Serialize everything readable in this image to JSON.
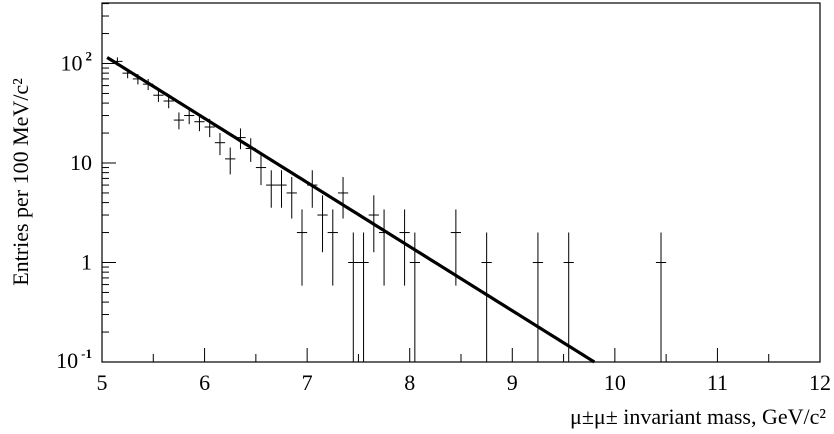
{
  "chart_data": {
    "type": "scatter",
    "title": "",
    "xlabel": "μ±μ± invariant mass, GeV/c²",
    "ylabel": "Entries per 100 MeV/c²",
    "xlim": [
      5,
      12
    ],
    "ylim": [
      0.1,
      400
    ],
    "yscale": "log",
    "grid": false,
    "x_ticks": [
      "5",
      "6",
      "7",
      "8",
      "9",
      "10",
      "11",
      "12"
    ],
    "y_ticks": [
      {
        "base": "10",
        "exp": "2"
      },
      {
        "base": "10",
        "exp": ""
      },
      {
        "base": "1",
        "exp": ""
      },
      {
        "base": "10",
        "exp": "-1"
      }
    ],
    "x_bin_width": 0.1,
    "series": [
      {
        "kind": "data-points-with-error-bars",
        "points": [
          {
            "x": 5.15,
            "y": 105
          },
          {
            "x": 5.25,
            "y": 80
          },
          {
            "x": 5.35,
            "y": 70
          },
          {
            "x": 5.45,
            "y": 62
          },
          {
            "x": 5.55,
            "y": 48
          },
          {
            "x": 5.65,
            "y": 42
          },
          {
            "x": 5.75,
            "y": 27
          },
          {
            "x": 5.85,
            "y": 30
          },
          {
            "x": 5.95,
            "y": 26
          },
          {
            "x": 6.05,
            "y": 23
          },
          {
            "x": 6.15,
            "y": 16
          },
          {
            "x": 6.25,
            "y": 11
          },
          {
            "x": 6.35,
            "y": 18
          },
          {
            "x": 6.45,
            "y": 14
          },
          {
            "x": 6.55,
            "y": 9
          },
          {
            "x": 6.65,
            "y": 6
          },
          {
            "x": 6.75,
            "y": 6
          },
          {
            "x": 6.85,
            "y": 5
          },
          {
            "x": 6.95,
            "y": 2
          },
          {
            "x": 7.05,
            "y": 6
          },
          {
            "x": 7.15,
            "y": 3
          },
          {
            "x": 7.25,
            "y": 2
          },
          {
            "x": 7.35,
            "y": 5
          },
          {
            "x": 7.45,
            "y": 1
          },
          {
            "x": 7.55,
            "y": 1
          },
          {
            "x": 7.65,
            "y": 3
          },
          {
            "x": 7.75,
            "y": 2
          },
          {
            "x": 7.95,
            "y": 2
          },
          {
            "x": 8.05,
            "y": 1
          },
          {
            "x": 8.45,
            "y": 2
          },
          {
            "x": 8.75,
            "y": 1
          },
          {
            "x": 9.25,
            "y": 1
          },
          {
            "x": 9.55,
            "y": 1
          },
          {
            "x": 10.45,
            "y": 1
          }
        ]
      },
      {
        "kind": "fit-curve",
        "points": [
          {
            "x": 5.05,
            "y": 115
          },
          {
            "x": 6.0,
            "y": 24
          },
          {
            "x": 7.0,
            "y": 4.5
          },
          {
            "x": 8.0,
            "y": 0.95
          },
          {
            "x": 9.0,
            "y": 0.23
          },
          {
            "x": 9.8,
            "y": 0.1
          }
        ]
      }
    ]
  }
}
